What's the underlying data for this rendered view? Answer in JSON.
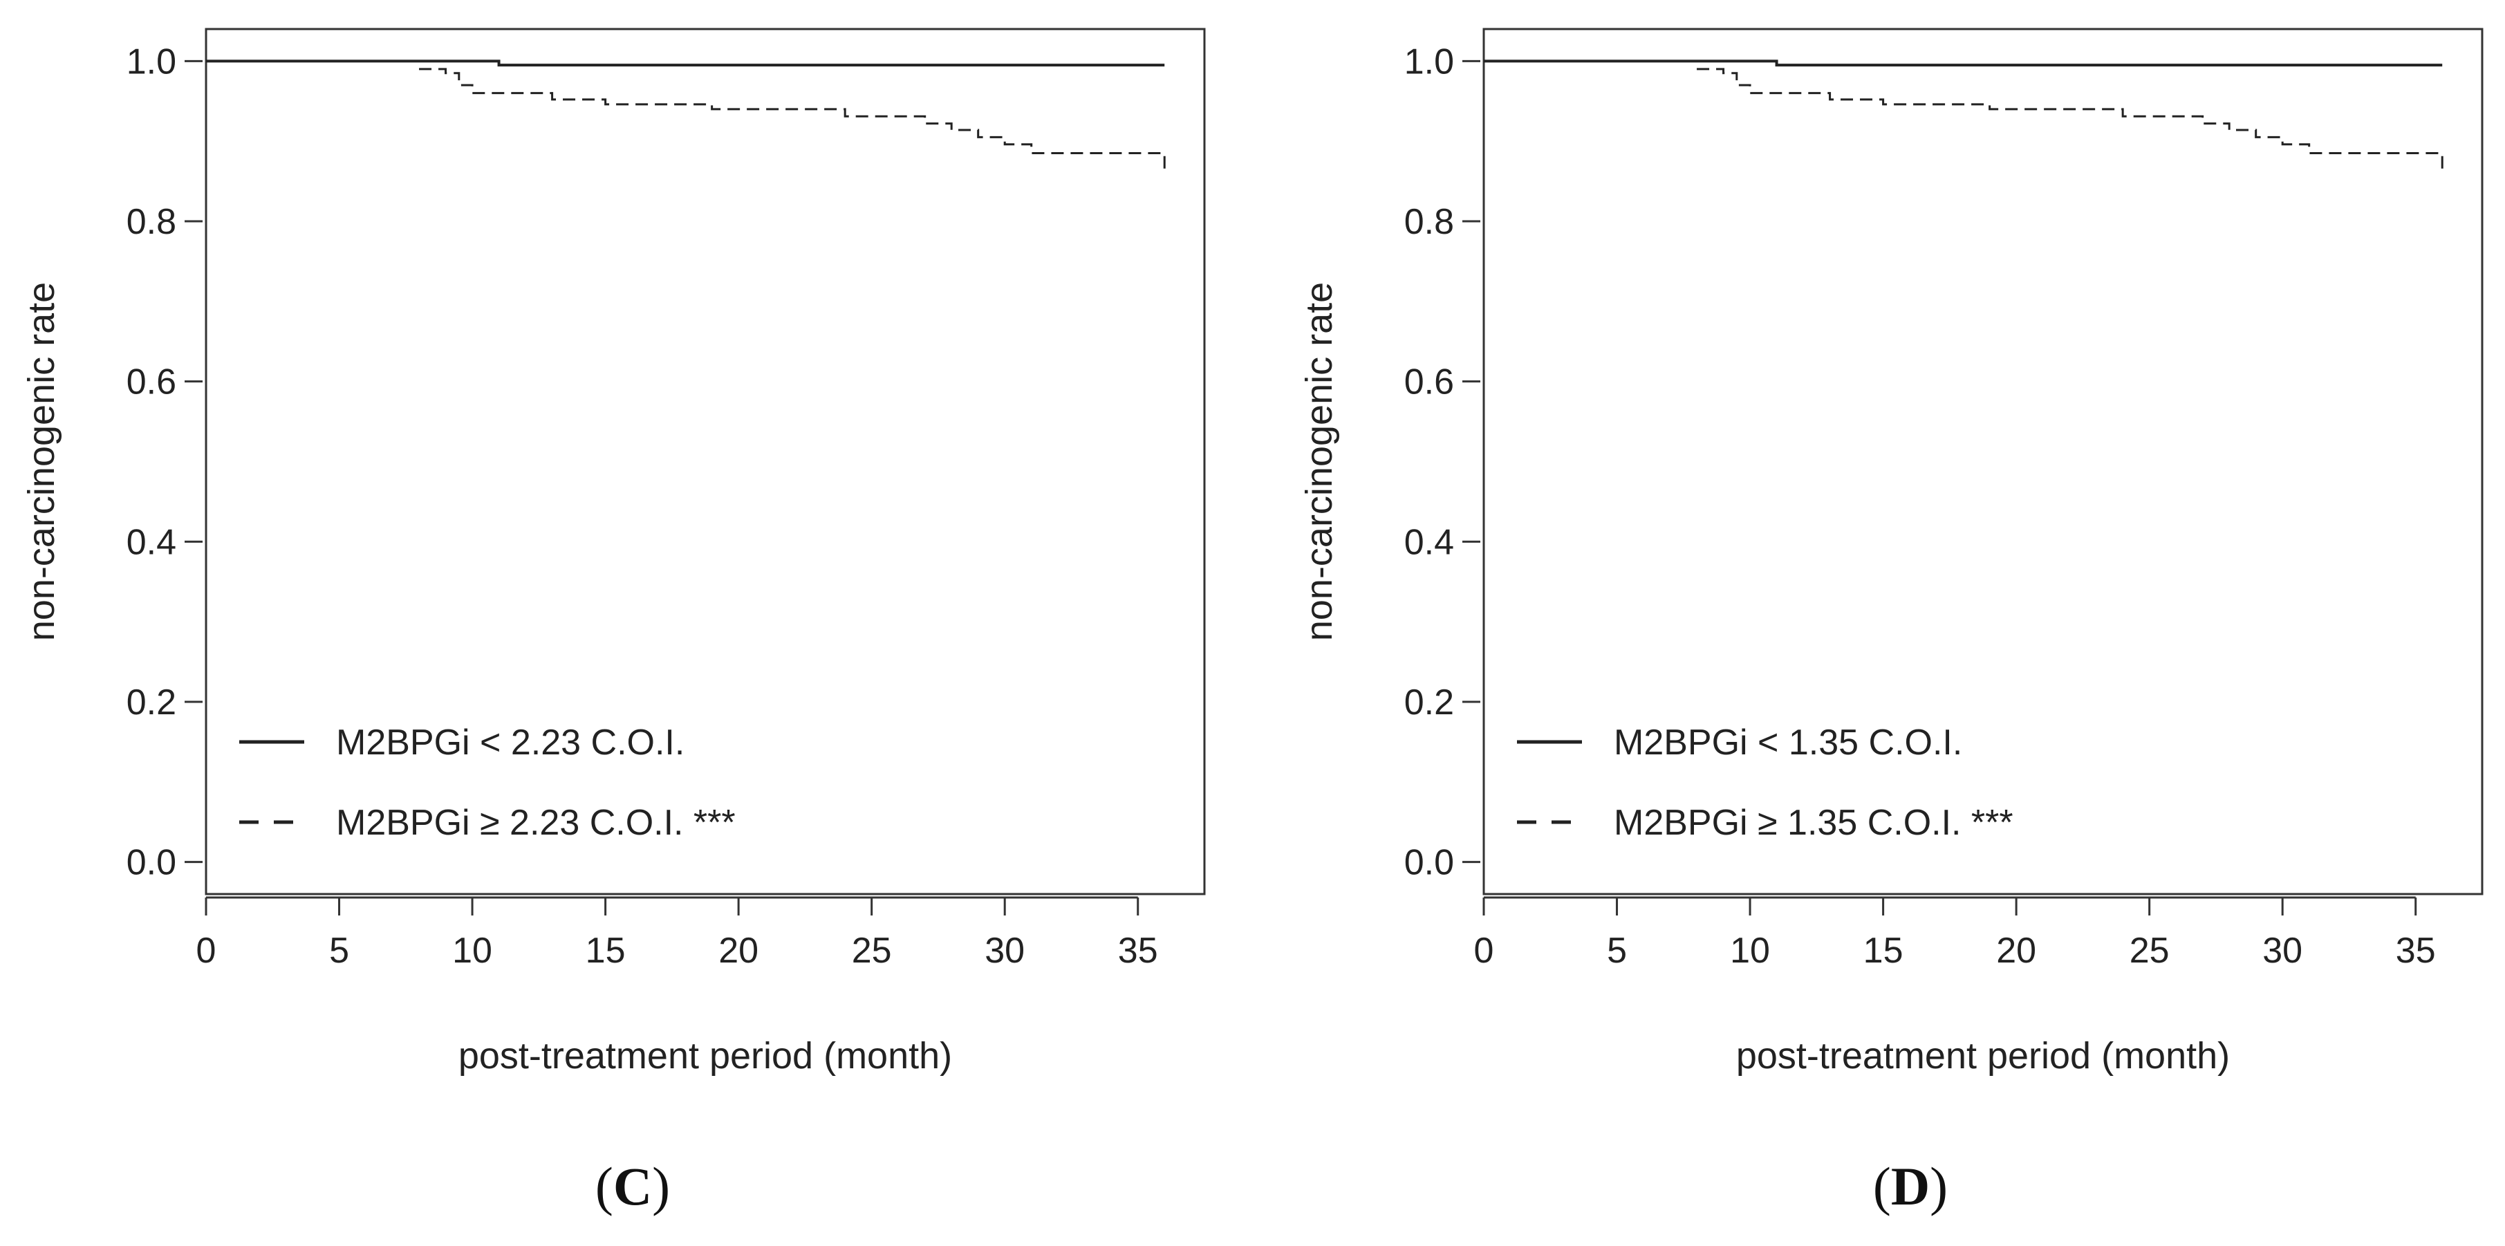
{
  "chart_data": [
    {
      "type": "line",
      "subtype": "kaplan-meier step curve",
      "panel_label": "C",
      "title": "",
      "xlabel": "post-treatment period (month)",
      "ylabel": "non-carcinogenic rate",
      "xlim": [
        0,
        37.5
      ],
      "ylim": [
        -0.04,
        1.04
      ],
      "xticks": [
        "0",
        "5",
        "10",
        "15",
        "20",
        "25",
        "30",
        "35"
      ],
      "yticks": [
        "0.0",
        "0.2",
        "0.4",
        "0.6",
        "0.8",
        "1.0"
      ],
      "grid": false,
      "legend_position": "bottom-left",
      "series": [
        {
          "name": "M2BPGi < 2.23 C.O.I.",
          "line_style": "solid",
          "x": [
            0,
            11,
            36
          ],
          "y": [
            1.0,
            0.995,
            0.995
          ]
        },
        {
          "name": "M2BPGi ≥ 2.23 C.O.I. ***",
          "line_style": "dashed",
          "x": [
            8,
            9,
            9.5,
            10,
            13,
            15,
            19,
            24,
            27,
            28,
            29,
            30,
            31,
            36
          ],
          "y": [
            0.99,
            0.985,
            0.97,
            0.96,
            0.952,
            0.946,
            0.94,
            0.931,
            0.922,
            0.914,
            0.905,
            0.896,
            0.885,
            0.865
          ]
        }
      ]
    },
    {
      "type": "line",
      "subtype": "kaplan-meier step curve",
      "panel_label": "D",
      "title": "",
      "xlabel": "post-treatment period (month)",
      "ylabel": "non-carcinogenic rate",
      "xlim": [
        0,
        37.5
      ],
      "ylim": [
        -0.04,
        1.04
      ],
      "xticks": [
        "0",
        "5",
        "10",
        "15",
        "20",
        "25",
        "30",
        "35"
      ],
      "yticks": [
        "0.0",
        "0.2",
        "0.4",
        "0.6",
        "0.8",
        "1.0"
      ],
      "grid": false,
      "legend_position": "bottom-left",
      "series": [
        {
          "name": "M2BPGi < 1.35 C.O.I.",
          "line_style": "solid",
          "x": [
            0,
            11,
            36
          ],
          "y": [
            1.0,
            0.995,
            0.995
          ]
        },
        {
          "name": "M2BPGi ≥ 1.35 C.O.I. ***",
          "line_style": "dashed",
          "x": [
            8,
            9,
            9.5,
            10,
            13,
            15,
            19,
            24,
            27,
            28,
            29,
            30,
            31,
            36
          ],
          "y": [
            0.99,
            0.985,
            0.97,
            0.96,
            0.952,
            0.946,
            0.94,
            0.931,
            0.922,
            0.914,
            0.905,
            0.896,
            0.885,
            0.865
          ]
        }
      ]
    }
  ]
}
